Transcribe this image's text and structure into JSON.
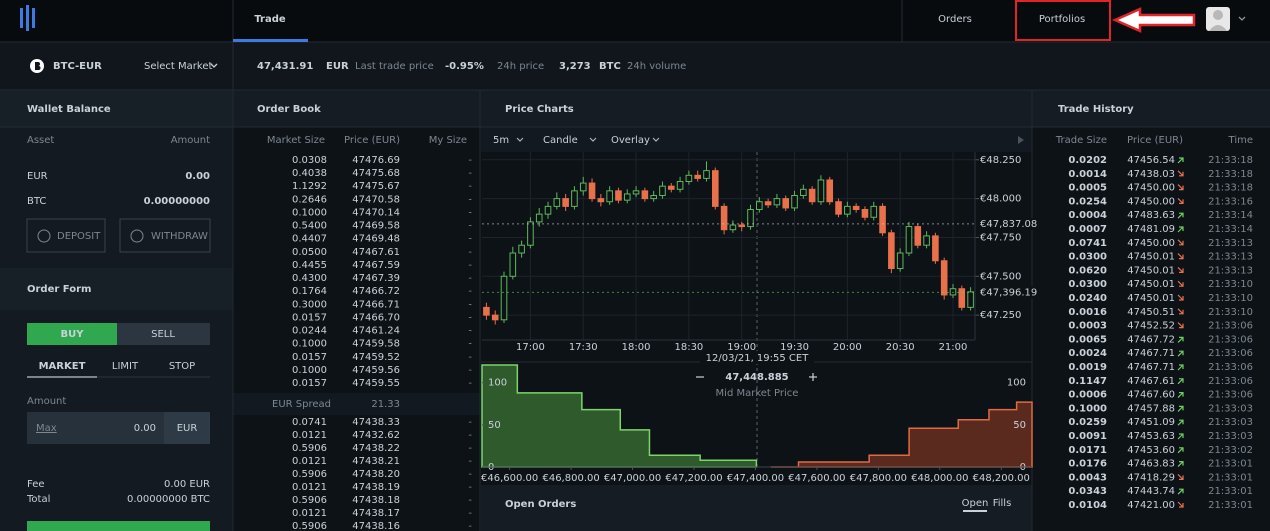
{
  "header": {
    "nav": [
      "Trade",
      "Orders",
      "Portfolios"
    ]
  },
  "market": {
    "pair": "BTC-EUR",
    "select": "Select Market",
    "last_price": "47,431.91",
    "last_price_currency": "EUR",
    "last_price_label": "Last trade price",
    "change": "-0.95%",
    "change_label": "24h price",
    "volume": "3,273",
    "volume_currency": "BTC",
    "volume_label": "24h volume"
  },
  "wallet": {
    "title": "Wallet Balance",
    "columns": [
      "Asset",
      "Amount"
    ],
    "rows": [
      [
        "EUR",
        "0.00"
      ],
      [
        "BTC",
        "0.00000000"
      ]
    ],
    "buttons": [
      "DEPOSIT",
      "WITHDRAW"
    ]
  },
  "order_form": {
    "title": "Order Form",
    "sides": [
      "BUY",
      "SELL"
    ],
    "types": [
      "MARKET",
      "LIMIT",
      "STOP"
    ],
    "amount_label": "Amount",
    "max": "Max",
    "amount": "0.00",
    "currency": "EUR",
    "fee_label": "Fee",
    "fee": "0.00 EUR",
    "total_label": "Total",
    "total": "0.00000000 BTC"
  },
  "order_book": {
    "title": "Order Book",
    "columns": [
      "Market Size",
      "Price (EUR)",
      "My Size"
    ],
    "asks": [
      [
        "0.0308",
        "47476.69",
        "-"
      ],
      [
        "0.4038",
        "47475.68",
        "-"
      ],
      [
        "1.1292",
        "47475.67",
        "-"
      ],
      [
        "0.2646",
        "47470.58",
        "-"
      ],
      [
        "0.1000",
        "47470.14",
        "-"
      ],
      [
        "0.5400",
        "47469.58",
        "-"
      ],
      [
        "0.4407",
        "47469.48",
        "-"
      ],
      [
        "0.0500",
        "47467.61",
        "-"
      ],
      [
        "0.4455",
        "47467.59",
        "-"
      ],
      [
        "0.4300",
        "47467.39",
        "-"
      ],
      [
        "0.1764",
        "47466.72",
        "-"
      ],
      [
        "0.3000",
        "47466.71",
        "-"
      ],
      [
        "0.0157",
        "47466.70",
        "-"
      ],
      [
        "0.0244",
        "47461.24",
        "-"
      ],
      [
        "0.1000",
        "47459.58",
        "-"
      ],
      [
        "0.0157",
        "47459.52",
        "-"
      ],
      [
        "0.1000",
        "47459.56",
        "-"
      ],
      [
        "0.0157",
        "47459.55",
        "-"
      ]
    ],
    "spread_label": "EUR Spread",
    "spread": "21.33",
    "bids": [
      [
        "0.0741",
        "47438.33",
        "-"
      ],
      [
        "0.0121",
        "47432.62",
        "-"
      ],
      [
        "0.5906",
        "47438.22",
        "-"
      ],
      [
        "0.0121",
        "47438.21",
        "-"
      ],
      [
        "0.5906",
        "47438.20",
        "-"
      ],
      [
        "0.0121",
        "47438.19",
        "-"
      ],
      [
        "0.5906",
        "47438.18",
        "-"
      ],
      [
        "0.0121",
        "47438.17",
        "-"
      ],
      [
        "0.5906",
        "47438.16",
        "-"
      ]
    ]
  },
  "price_charts": {
    "title": "Price Charts",
    "controls": [
      "5m",
      "Candle",
      "Overlay"
    ],
    "cursor_time": "12/03/21, 19:55 CET",
    "mid_price": "47,448.885",
    "mid_price_label": "Mid Market Price"
  },
  "trade_history": {
    "title": "Trade History",
    "columns": [
      "Trade Size",
      "Price (EUR)",
      "Time"
    ],
    "rows": [
      {
        "size": "0.0202",
        "price": "47456.54",
        "dir": "up",
        "time": "21:33:18"
      },
      {
        "size": "0.0014",
        "price": "47438.03",
        "dir": "down",
        "time": "21:33:18"
      },
      {
        "size": "0.0005",
        "price": "47450.00",
        "dir": "down",
        "time": "21:33:18"
      },
      {
        "size": "0.0254",
        "price": "47450.00",
        "dir": "down",
        "time": "21:33:16"
      },
      {
        "size": "0.0004",
        "price": "47483.63",
        "dir": "up",
        "time": "21:33:14"
      },
      {
        "size": "0.0007",
        "price": "47481.09",
        "dir": "up",
        "time": "21:33:14"
      },
      {
        "size": "0.0741",
        "price": "47450.00",
        "dir": "down",
        "time": "21:33:13"
      },
      {
        "size": "0.0300",
        "price": "47450.01",
        "dir": "down",
        "time": "21:33:13"
      },
      {
        "size": "0.0620",
        "price": "47450.01",
        "dir": "down",
        "time": "21:33:13"
      },
      {
        "size": "0.0300",
        "price": "47450.01",
        "dir": "down",
        "time": "21:33:10"
      },
      {
        "size": "0.0240",
        "price": "47450.01",
        "dir": "down",
        "time": "21:33:10"
      },
      {
        "size": "0.0016",
        "price": "47450.51",
        "dir": "down",
        "time": "21:33:10"
      },
      {
        "size": "0.0003",
        "price": "47452.52",
        "dir": "down",
        "time": "21:33:06"
      },
      {
        "size": "0.0065",
        "price": "47467.72",
        "dir": "up",
        "time": "21:33:06"
      },
      {
        "size": "0.0024",
        "price": "47467.71",
        "dir": "up",
        "time": "21:33:06"
      },
      {
        "size": "0.0019",
        "price": "47467.71",
        "dir": "up",
        "time": "21:33:06"
      },
      {
        "size": "0.1147",
        "price": "47467.61",
        "dir": "up",
        "time": "21:33:06"
      },
      {
        "size": "0.0006",
        "price": "47467.60",
        "dir": "up",
        "time": "21:33:06"
      },
      {
        "size": "0.1000",
        "price": "47457.88",
        "dir": "up",
        "time": "21:33:03"
      },
      {
        "size": "0.0259",
        "price": "47451.09",
        "dir": "up",
        "time": "21:33:03"
      },
      {
        "size": "0.0091",
        "price": "47453.63",
        "dir": "up",
        "time": "21:33:03"
      },
      {
        "size": "0.0171",
        "price": "47453.60",
        "dir": "up",
        "time": "21:33:02"
      },
      {
        "size": "0.0176",
        "price": "47463.83",
        "dir": "up",
        "time": "21:33:01"
      },
      {
        "size": "0.0043",
        "price": "47418.29",
        "dir": "down",
        "time": "21:33:01"
      },
      {
        "size": "0.0343",
        "price": "47443.74",
        "dir": "up",
        "time": "21:33:01"
      },
      {
        "size": "0.0104",
        "price": "47421.00",
        "dir": "down",
        "time": "21:33:01"
      }
    ]
  },
  "open_orders": {
    "title": "Open Orders",
    "tabs": [
      "Open",
      "Fills"
    ]
  },
  "chart_data": [
    {
      "type": "candlestick",
      "up_color": "#5cb85c",
      "down_color": "#e8704a",
      "grid": true,
      "categories": [
        null,
        null,
        null,
        null,
        null,
        "17:00",
        null,
        null,
        null,
        null,
        null,
        "17:30",
        null,
        null,
        null,
        null,
        null,
        "18:00",
        null,
        null,
        null,
        null,
        null,
        "18:30",
        null,
        null,
        null,
        null,
        null,
        "19:00",
        null,
        null,
        null,
        null,
        null,
        "19:30",
        null,
        null,
        null,
        null,
        null,
        "20:00",
        null,
        null,
        null,
        null,
        null,
        "20:30",
        null,
        null,
        null,
        null,
        null,
        "21:00",
        null,
        null
      ],
      "candles": [
        [
          47300,
          47330,
          47220,
          47250
        ],
        [
          47250,
          47280,
          47190,
          47220
        ],
        [
          47220,
          47530,
          47200,
          47500
        ],
        [
          47500,
          47690,
          47480,
          47650
        ],
        [
          47650,
          47730,
          47620,
          47700
        ],
        [
          47700,
          47880,
          47680,
          47850
        ],
        [
          47850,
          47940,
          47820,
          47900
        ],
        [
          47900,
          47980,
          47870,
          47950
        ],
        [
          47950,
          48040,
          47930,
          48000
        ],
        [
          48000,
          48030,
          47920,
          47950
        ],
        [
          47950,
          48080,
          47930,
          48050
        ],
        [
          48050,
          48140,
          48020,
          48100
        ],
        [
          48100,
          48130,
          47980,
          48000
        ],
        [
          48000,
          48030,
          47950,
          47980
        ],
        [
          47980,
          48080,
          47960,
          48050
        ],
        [
          48050,
          48070,
          47970,
          47990
        ],
        [
          47990,
          48060,
          47970,
          48030
        ],
        [
          48030,
          48080,
          48010,
          48050
        ],
        [
          48050,
          48070,
          47980,
          48000
        ],
        [
          48000,
          48050,
          47980,
          48020
        ],
        [
          48020,
          48110,
          48000,
          48080
        ],
        [
          48080,
          48100,
          48040,
          48060
        ],
        [
          48060,
          48140,
          48040,
          48110
        ],
        [
          48110,
          48180,
          48090,
          48150
        ],
        [
          48150,
          48180,
          48110,
          48130
        ],
        [
          48130,
          48240,
          48110,
          48180
        ],
        [
          48180,
          48200,
          47930,
          47950
        ],
        [
          47950,
          47970,
          47770,
          47800
        ],
        [
          47800,
          47860,
          47780,
          47830
        ],
        [
          47830,
          47850,
          47790,
          47820
        ],
        [
          47820,
          47960,
          47800,
          47930
        ],
        [
          47930,
          48010,
          47910,
          47980
        ],
        [
          47980,
          48000,
          47940,
          47960
        ],
        [
          47960,
          48030,
          47940,
          48000
        ],
        [
          48000,
          48020,
          47920,
          47940
        ],
        [
          47940,
          48050,
          47920,
          48020
        ],
        [
          48020,
          48090,
          48000,
          48060
        ],
        [
          48060,
          48080,
          47960,
          47980
        ],
        [
          47980,
          48150,
          47960,
          48120
        ],
        [
          48120,
          48140,
          47960,
          47980
        ],
        [
          47980,
          48000,
          47880,
          47900
        ],
        [
          47900,
          47980,
          47880,
          47950
        ],
        [
          47950,
          47970,
          47910,
          47930
        ],
        [
          47930,
          47950,
          47860,
          47880
        ],
        [
          47880,
          47980,
          47860,
          47950
        ],
        [
          47950,
          47970,
          47760,
          47780
        ],
        [
          47780,
          47800,
          47520,
          47550
        ],
        [
          47550,
          47680,
          47530,
          47650
        ],
        [
          47650,
          47850,
          47630,
          47820
        ],
        [
          47820,
          47840,
          47680,
          47700
        ],
        [
          47700,
          47790,
          47680,
          47760
        ],
        [
          47760,
          47780,
          47580,
          47600
        ],
        [
          47600,
          47620,
          47350,
          47380
        ],
        [
          47380,
          47450,
          47360,
          47420
        ],
        [
          47420,
          47440,
          47280,
          47300
        ],
        [
          47300,
          47430,
          47280,
          47400
        ]
      ],
      "ylim": [
        47090,
        48300
      ],
      "yticks": [
        {
          "value": 48250,
          "label": "€48.250"
        },
        {
          "value": 48000,
          "label": "€48.000"
        },
        {
          "value": 47750,
          "label": "€47.750"
        },
        {
          "value": 47500,
          "label": "€47.500"
        },
        {
          "value": 47250,
          "label": "€47.250"
        }
      ],
      "price_lines": [
        {
          "value": 47837.08,
          "label": "€47,837.08",
          "color": "#d0d6dc"
        },
        {
          "value": 47396.19,
          "label": "€47,396.19",
          "color": "#6fcf5f"
        }
      ]
    },
    {
      "type": "depth",
      "xlim": [
        46510,
        48300
      ],
      "ylim": [
        0,
        121
      ],
      "xticks": [
        {
          "value": 46600,
          "label": "€46,600.00"
        },
        {
          "value": 46800,
          "label": "€46,800.00"
        },
        {
          "value": 47000,
          "label": "€47,000.00"
        },
        {
          "value": 47200,
          "label": "€47,200.00"
        },
        {
          "value": 47400,
          "label": "€47,400.00"
        },
        {
          "value": 47600,
          "label": "€47,600.00"
        },
        {
          "value": 47800,
          "label": "€47,800.00"
        },
        {
          "value": 48000,
          "label": "€48,000.00"
        },
        {
          "value": 48200,
          "label": "€48,200.00"
        }
      ],
      "yticks": [
        0,
        50,
        100
      ],
      "series": [
        {
          "color": "#7ed36b",
          "fill": "#2f5a2b",
          "x": [
            46510,
            46625,
            46835,
            46960,
            47055,
            47220,
            47403
          ],
          "values": [
            121,
            88,
            68,
            44,
            14,
            8,
            0
          ]
        },
        {
          "color": "#e06a45",
          "fill": "#5a2a1e",
          "x": [
            47450,
            47540,
            47770,
            47900,
            48060,
            48160,
            48250
          ],
          "values": [
            0,
            6,
            14,
            46,
            56,
            68,
            77
          ]
        }
      ]
    }
  ]
}
